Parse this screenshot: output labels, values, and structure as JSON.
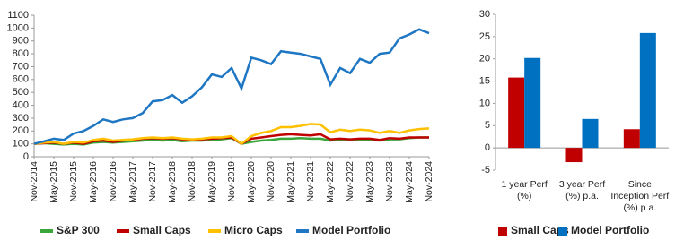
{
  "chart_data": [
    {
      "type": "line",
      "categories": [
        "Nov-2014",
        null,
        "May-2015",
        null,
        "Nov-2015",
        null,
        "May-2016",
        null,
        "Nov-2016",
        null,
        "May-2017",
        null,
        "Nov-2017",
        null,
        "May-2018",
        null,
        "Nov-2018",
        null,
        "May-2019",
        null,
        "Nov-2019",
        null,
        "May-2020",
        null,
        "Nov-2020",
        null,
        "May-2021",
        null,
        "Nov-2021",
        null,
        "May-2022",
        null,
        "Nov-2022",
        null,
        "May-2023",
        null,
        "Nov-2023",
        null,
        "May-2024",
        null,
        "Nov-2024"
      ],
      "series": [
        {
          "name": "S&P 300",
          "color": "#3aa63a",
          "values": [
            100,
            105,
            100,
            95,
            100,
            95,
            110,
            115,
            110,
            115,
            120,
            125,
            130,
            125,
            130,
            120,
            125,
            125,
            130,
            135,
            145,
            100,
            115,
            125,
            130,
            140,
            140,
            145,
            140,
            140,
            125,
            130,
            130,
            130,
            130,
            125,
            135,
            135,
            145,
            150,
            150
          ]
        },
        {
          "name": "Small Caps",
          "color": "#c00000",
          "values": [
            100,
            105,
            110,
            100,
            110,
            100,
            120,
            125,
            115,
            125,
            130,
            140,
            145,
            140,
            145,
            135,
            130,
            135,
            140,
            145,
            150,
            100,
            140,
            150,
            160,
            170,
            175,
            170,
            165,
            175,
            135,
            140,
            135,
            140,
            140,
            130,
            145,
            140,
            150,
            150,
            150
          ]
        },
        {
          "name": "Micro Caps",
          "color": "#ffc000",
          "values": [
            100,
            110,
            115,
            100,
            115,
            110,
            130,
            140,
            125,
            130,
            135,
            145,
            150,
            145,
            150,
            140,
            135,
            140,
            150,
            150,
            160,
            100,
            160,
            185,
            200,
            230,
            230,
            240,
            255,
            250,
            190,
            210,
            200,
            210,
            205,
            185,
            200,
            185,
            205,
            215,
            220
          ]
        },
        {
          "name": "Model Portfolio",
          "color": "#1f77c4",
          "values": [
            100,
            120,
            140,
            130,
            180,
            200,
            240,
            290,
            270,
            290,
            300,
            340,
            430,
            440,
            480,
            420,
            470,
            540,
            640,
            620,
            690,
            530,
            770,
            750,
            720,
            820,
            810,
            800,
            780,
            760,
            560,
            690,
            650,
            760,
            730,
            800,
            810,
            920,
            950,
            990,
            960
          ]
        }
      ],
      "ylim": [
        0,
        1100
      ],
      "yticks": [
        0,
        100,
        200,
        300,
        400,
        500,
        600,
        700,
        800,
        900,
        1000,
        1100
      ],
      "grid": false,
      "legend": "bottom"
    },
    {
      "type": "bar",
      "categories": [
        "1 year Perf (%)",
        "3 year Perf (%) p.a.",
        "Since Inception Perf (%) p.a."
      ],
      "series": [
        {
          "name": "Small Caps",
          "color": "#c00000",
          "values": [
            15.8,
            -3.2,
            4.2
          ]
        },
        {
          "name": "Model Portfolio",
          "color": "#0070c0",
          "values": [
            20.2,
            6.5,
            25.8
          ]
        }
      ],
      "ylim": [
        -5,
        30
      ],
      "yticks": [
        -5,
        0,
        5,
        10,
        15,
        20,
        25,
        30
      ],
      "grid": false,
      "legend": "bottom"
    }
  ]
}
